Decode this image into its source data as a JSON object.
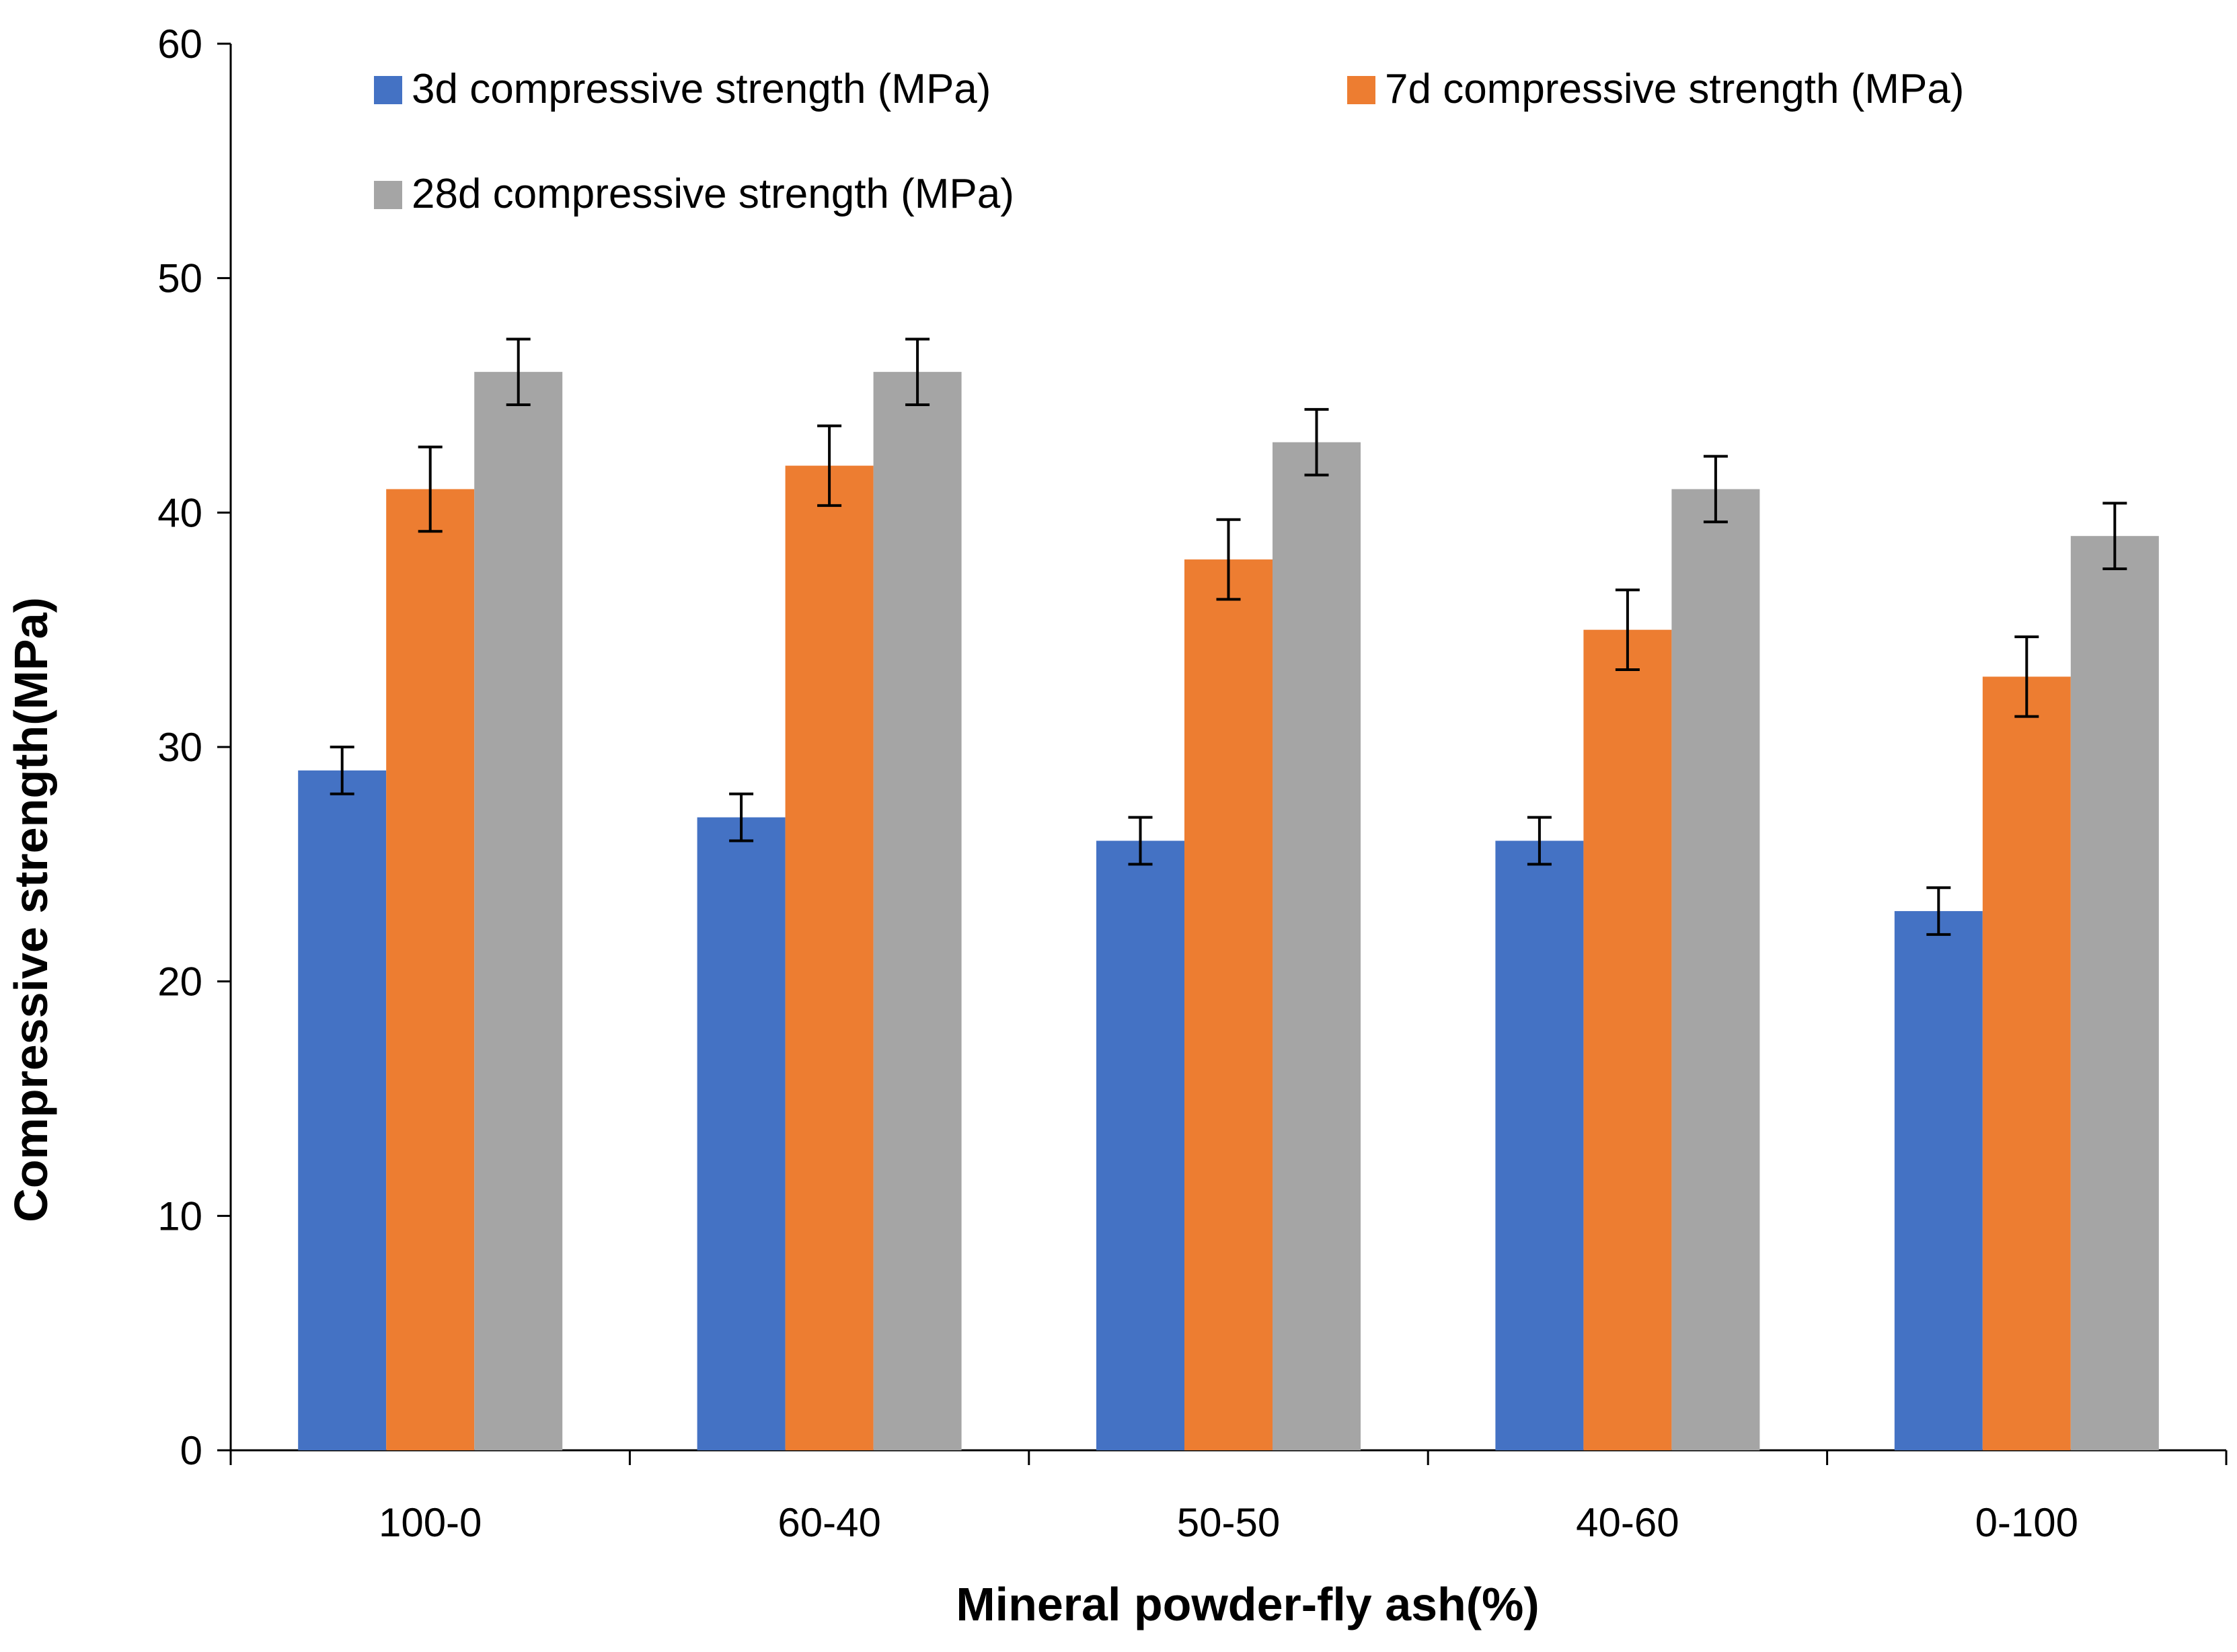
{
  "chart_data": {
    "type": "bar",
    "title": "",
    "xlabel": "Mineral powder-fly ash(%)",
    "ylabel": "Compressive strength(MPa)",
    "ylim": [
      0,
      60
    ],
    "yticks": [
      0,
      10,
      20,
      30,
      40,
      50,
      60
    ],
    "grid": false,
    "legend_position": "top",
    "categories": [
      "100-0",
      "60-40",
      "50-50",
      "40-60",
      "0-100"
    ],
    "series": [
      {
        "name": "3d compressive strength (MPa)",
        "color": "#4472C4",
        "values": [
          29,
          27,
          26,
          26,
          23
        ],
        "errors": [
          1.0,
          1.0,
          1.0,
          1.0,
          1.0
        ]
      },
      {
        "name": "7d compressive strength (MPa)",
        "color": "#ED7D31",
        "values": [
          41,
          42,
          38,
          35,
          33
        ],
        "errors": [
          1.8,
          1.7,
          1.7,
          1.7,
          1.7
        ]
      },
      {
        "name": "28d compressive strength (MPa)",
        "color": "#A5A5A5",
        "values": [
          46,
          46,
          43,
          41,
          39
        ],
        "errors": [
          1.4,
          1.4,
          1.4,
          1.4,
          1.4
        ]
      }
    ]
  }
}
